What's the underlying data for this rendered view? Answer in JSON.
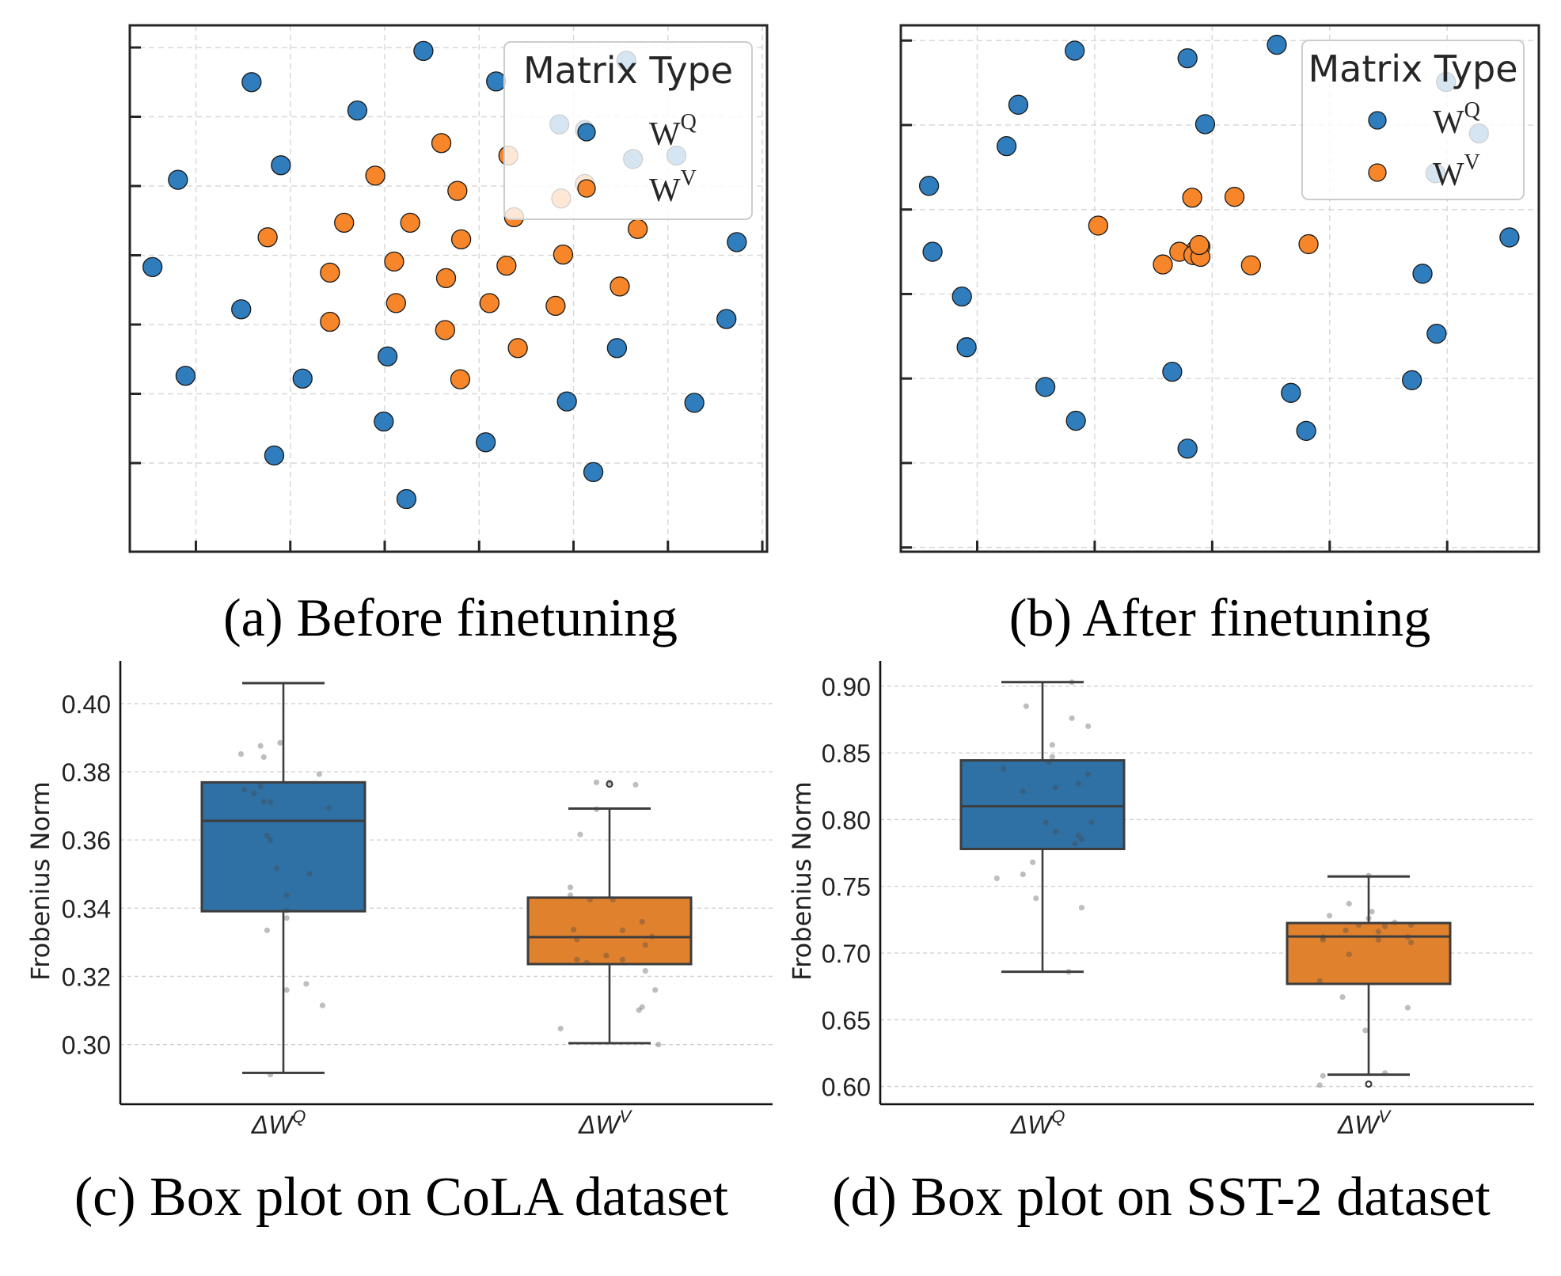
{
  "chart_data": [
    {
      "id": "a",
      "type": "scatter",
      "caption": "(a) Before finetuning",
      "title": "",
      "xlabel": "",
      "ylabel": "",
      "xlim": [
        0.3,
        7.05
      ],
      "ylim": [
        -0.28,
        7.32
      ],
      "xticks": [
        1,
        2,
        3,
        4,
        5,
        6,
        7
      ],
      "yticks": [
        1,
        2,
        3,
        4,
        5,
        6,
        7
      ],
      "tick_labels_shown": false,
      "grid": true,
      "legend": {
        "title": "Matrix Type",
        "placement": "top-right",
        "entries": [
          {
            "base": "W",
            "sup": "Q",
            "series": "WQ"
          },
          {
            "base": "W",
            "sup": "V",
            "series": "WV"
          }
        ]
      },
      "series": [
        {
          "name": "WQ",
          "color": "#2f7dbd",
          "x": [
            3.41,
            1.59,
            2.71,
            0.81,
            1.9,
            5.12,
            0.54,
            1.48,
            0.89,
            2.13,
            3.03,
            1.83,
            2.99,
            3.23,
            4.07,
            4.93,
            5.21,
            5.46,
            6.28,
            6.62,
            6.73,
            5.56,
            4.18,
            5.63,
            4.85,
            6.09
          ],
          "y": [
            6.95,
            6.5,
            6.09,
            5.09,
            5.3,
            5.81,
            3.83,
            3.22,
            2.26,
            2.22,
            2.54,
            1.11,
            1.6,
            0.48,
            1.3,
            1.89,
            0.87,
            2.66,
            1.87,
            3.08,
            4.19,
            6.81,
            6.51,
            5.39,
            5.89,
            5.44
          ]
        },
        {
          "name": "WV",
          "color": "#f7862a",
          "x": [
            3.6,
            2.9,
            3.77,
            1.76,
            2.57,
            3.27,
            3.81,
            4.37,
            5.12,
            5.68,
            4.89,
            3.1,
            4.29,
            2.42,
            3.65,
            5.49,
            3.12,
            4.11,
            4.81,
            2.42,
            3.64,
            4.41,
            3.8,
            4.31,
            4.87
          ],
          "y": [
            5.62,
            5.15,
            4.93,
            4.26,
            4.47,
            4.47,
            4.23,
            4.55,
            5.03,
            4.38,
            4.01,
            3.91,
            3.85,
            3.75,
            3.67,
            3.55,
            3.31,
            3.31,
            3.27,
            3.04,
            2.92,
            2.66,
            2.21,
            5.44,
            4.82
          ]
        }
      ]
    },
    {
      "id": "b",
      "type": "scatter",
      "caption": "(b) After finetuning",
      "title": "",
      "xlabel": "",
      "ylabel": "",
      "xlim": [
        0.35,
        5.78
      ],
      "ylim": [
        -0.05,
        6.18
      ],
      "xticks": [
        1,
        2,
        3,
        4,
        5
      ],
      "yticks": [
        0,
        1,
        2,
        3,
        4,
        5,
        6
      ],
      "tick_labels_shown": false,
      "grid": true,
      "legend": {
        "title": "Matrix Type",
        "placement": "top-right",
        "entries": [
          {
            "base": "W",
            "sup": "Q",
            "series": "WQ"
          },
          {
            "base": "W",
            "sup": "V",
            "series": "WV"
          }
        ]
      },
      "series": [
        {
          "name": "WQ",
          "color": "#2f7dbd",
          "x": [
            1.83,
            2.79,
            3.55,
            1.35,
            2.94,
            1.25,
            0.59,
            4.9,
            5.53,
            0.62,
            4.79,
            0.87,
            4.91,
            0.91,
            2.66,
            4.7,
            1.58,
            3.67,
            1.84,
            3.8,
            2.79,
            4.99,
            5.27
          ],
          "y": [
            5.88,
            5.79,
            5.95,
            5.24,
            5.01,
            4.75,
            4.28,
            4.43,
            3.67,
            3.5,
            3.24,
            2.97,
            2.53,
            2.37,
            2.08,
            1.98,
            1.9,
            1.83,
            1.5,
            1.38,
            1.17,
            5.51,
            4.9
          ]
        },
        {
          "name": "WV",
          "color": "#f7862a",
          "x": [
            2.83,
            3.19,
            2.03,
            3.82,
            2.9,
            2.86,
            2.72,
            2.84,
            2.9,
            2.58,
            3.33,
            2.89
          ],
          "y": [
            4.14,
            4.15,
            3.81,
            3.59,
            3.56,
            3.52,
            3.5,
            3.46,
            3.44,
            3.35,
            3.34,
            3.58
          ]
        }
      ]
    },
    {
      "id": "c",
      "type": "box",
      "caption": "(c) Box plot on CoLA dataset",
      "title": "",
      "xlabel": "",
      "ylabel": "Frobenius Norm",
      "ylim": [
        0.2825,
        0.4125
      ],
      "yticks": [
        0.3,
        0.32,
        0.34,
        0.36,
        0.38,
        0.4
      ],
      "ytick_labels": [
        "0.30",
        "0.32",
        "0.34",
        "0.36",
        "0.38",
        "0.40"
      ],
      "grid": true,
      "categories": [
        {
          "label_base": "ΔW",
          "label_sup": "Q"
        },
        {
          "label_base": "ΔW",
          "label_sup": "V"
        }
      ],
      "series": [
        {
          "name": "ΔW^Q",
          "color": "#2f71a5",
          "whislo": 0.2917,
          "q1": 0.3391,
          "median": 0.3656,
          "q3": 0.3769,
          "whishi": 0.406,
          "fliers": [],
          "points": {
            "offset": [
              -0.13,
              -0.07,
              -0.01,
              -0.06,
              0.11,
              -0.12,
              -0.09,
              -0.07,
              -0.06,
              -0.04,
              0.14,
              -0.05,
              -0.04,
              -0.02,
              0.08,
              0.01,
              0.01,
              0.01,
              -0.05,
              0.07,
              0.01,
              0.12,
              -0.04
            ],
            "value": [
              0.3852,
              0.3876,
              0.3885,
              0.3843,
              0.3793,
              0.3748,
              0.3737,
              0.3757,
              0.3712,
              0.371,
              0.3694,
              0.3613,
              0.36,
              0.3517,
              0.3501,
              0.3438,
              0.3393,
              0.3371,
              0.3335,
              0.3178,
              0.316,
              0.3115,
              0.2912
            ]
          }
        },
        {
          "name": "ΔW^V",
          "color": "#e0812e",
          "whislo": 0.3004,
          "q1": 0.3236,
          "median": 0.3315,
          "q3": 0.3431,
          "whishi": 0.3692,
          "fliers": [
            0.3764
          ],
          "points": {
            "offset": [
              -0.04,
              0.0,
              0.08,
              -0.04,
              -0.09,
              -0.12,
              -0.12,
              -0.06,
              0.01,
              0.1,
              -0.11,
              0.04,
              -0.1,
              0.13,
              0.11,
              -0.01,
              -0.1,
              -0.07,
              0.04,
              0.11,
              0.14,
              0.1,
              0.09,
              -0.15,
              0.15
            ],
            "value": [
              0.3769,
              0.3769,
              0.3762,
              0.369,
              0.3616,
              0.3461,
              0.3438,
              0.3425,
              0.3425,
              0.336,
              0.3337,
              0.3335,
              0.3308,
              0.3317,
              0.3292,
              0.3261,
              0.3249,
              0.324,
              0.3249,
              0.3216,
              0.316,
              0.311,
              0.3101,
              0.3047,
              0.3
            ]
          }
        }
      ]
    },
    {
      "id": "d",
      "type": "box",
      "caption": "(d) Box plot on SST-2 dataset",
      "title": "",
      "xlabel": "",
      "ylabel": "Frobenius Norm",
      "ylim": [
        0.5867,
        0.9189
      ],
      "yticks": [
        0.6,
        0.65,
        0.7,
        0.75,
        0.8,
        0.85,
        0.9
      ],
      "ytick_labels": [
        "0.60",
        "0.65",
        "0.70",
        "0.75",
        "0.80",
        "0.85",
        "0.90"
      ],
      "grid": true,
      "categories": [
        {
          "label_base": "ΔW",
          "label_sup": "Q"
        },
        {
          "label_base": "ΔW",
          "label_sup": "V"
        }
      ],
      "series": [
        {
          "name": "ΔW^Q",
          "color": "#2f71a5",
          "whislo": 0.686,
          "q1": 0.778,
          "median": 0.81,
          "q3": 0.8444,
          "whishi": 0.903,
          "fliers": [],
          "points": {
            "offset": [
              0.09,
              -0.05,
              0.09,
              0.14,
              0.03,
              0.03,
              0.02,
              -0.12,
              0.14,
              0.11,
              0.04,
              -0.06,
              0.01,
              0.15,
              0.04,
              0.11,
              0.12,
              0.1,
              -0.03,
              -0.14,
              -0.06,
              -0.02,
              0.12,
              0.08
            ],
            "value": [
              0.903,
              0.885,
              0.876,
              0.87,
              0.856,
              0.847,
              0.843,
              0.838,
              0.834,
              0.827,
              0.824,
              0.821,
              0.798,
              0.798,
              0.791,
              0.788,
              0.785,
              0.782,
              0.768,
              0.756,
              0.759,
              0.741,
              0.734,
              0.686
            ]
          }
        },
        {
          "name": "ΔW^V",
          "color": "#e0812e",
          "whislo": 0.6089,
          "q1": 0.6769,
          "median": 0.7124,
          "q3": 0.7225,
          "whishi": 0.7574,
          "fliers": [
            0.6018
          ],
          "points": {
            "offset": [
              0.0,
              -0.06,
              0.01,
              -0.12,
              0.0,
              -0.03,
              0.08,
              0.13,
              -0.07,
              0.05,
              0.03,
              -0.14,
              0.12,
              -0.14,
              0.03,
              0.13,
              -0.06,
              -0.15,
              -0.08,
              0.12,
              -0.01,
              -0.14,
              0.05,
              -0.15
            ],
            "value": [
              0.758,
              0.737,
              0.731,
              0.728,
              0.726,
              0.721,
              0.723,
              0.721,
              0.717,
              0.72,
              0.716,
              0.712,
              0.712,
              0.71,
              0.71,
              0.708,
              0.699,
              0.679,
              0.667,
              0.659,
              0.642,
              0.608,
              0.61,
              0.601
            ]
          }
        }
      ]
    }
  ]
}
